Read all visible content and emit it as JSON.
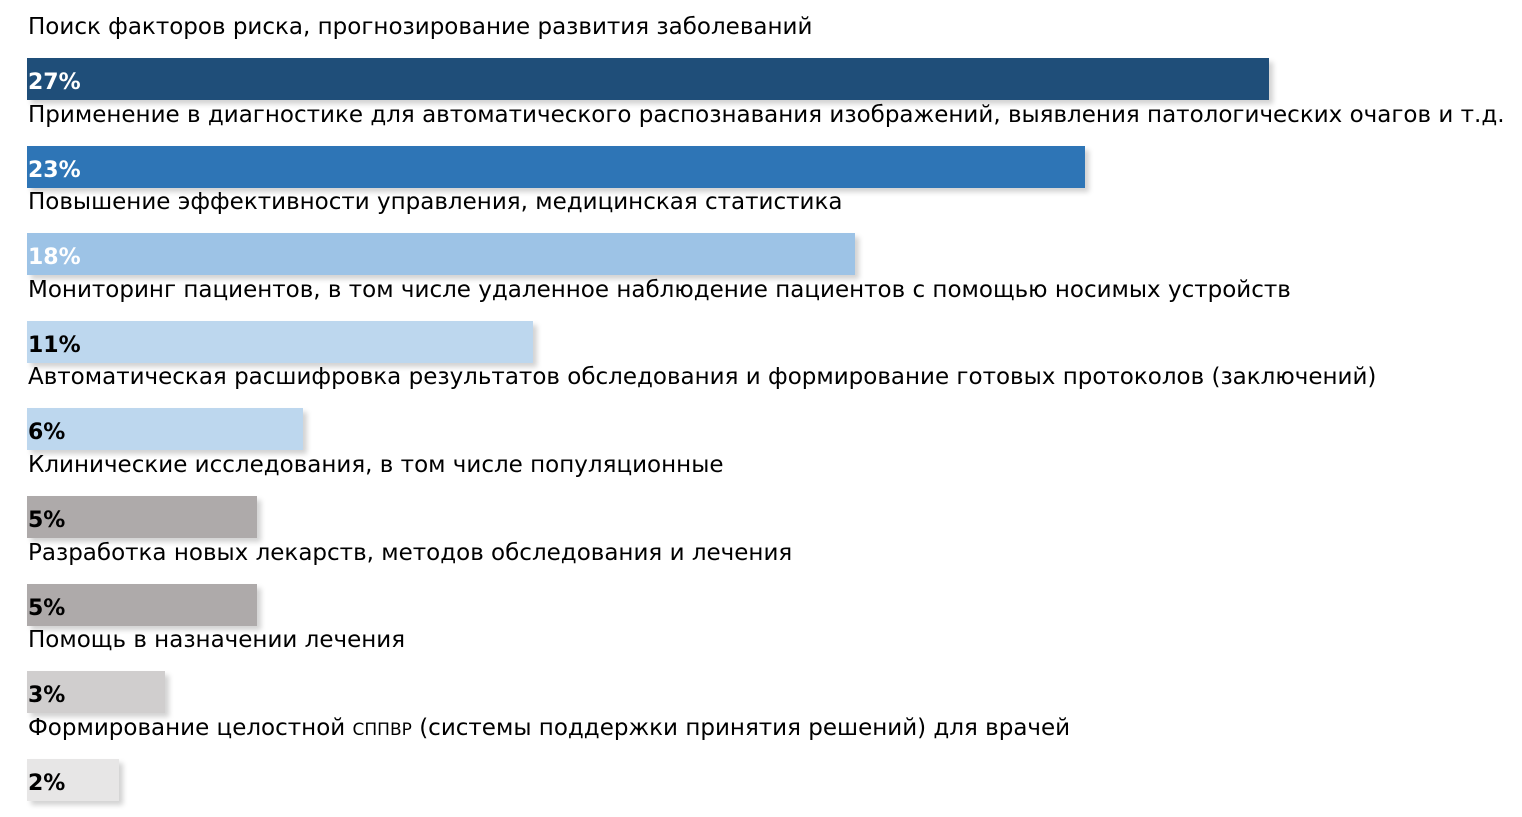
{
  "chart_data": {
    "type": "bar",
    "orientation": "horizontal",
    "title": "",
    "xlabel": "",
    "ylabel": "",
    "categories": [
      "Поиск факторов риска, прогнозирование развития заболеваний",
      "Применение в диагностике для автоматического распознавания изображений, выявления патологических очагов и т.д.",
      "Повышение эффективности управления, медицинская статистика",
      "Мониторинг пациентов, в том числе удаленное наблюдение пациентов с помощью носимых устройств",
      "Автоматическая расшифровка результатов обследования и формирование готовых протоколов (заключений)",
      "Клинические исследования, в том числе популяционные",
      "Разработка новых лекарств, методов обследования и лечения",
      "Помощь в назначении лечения",
      "Формирование целостной СППВР (системы поддержки принятия решений) для врачей"
    ],
    "values": [
      27,
      23,
      18,
      11,
      6,
      5,
      5,
      3,
      2
    ],
    "value_labels": [
      "27%",
      "23%",
      "18%",
      "11%",
      "6%",
      "5%",
      "5%",
      "3%",
      "2%"
    ],
    "unit": "%",
    "bar_colors": [
      "#1f4e79",
      "#2e75b6",
      "#9dc3e6",
      "#bdd7ee",
      "#bdd7ee",
      "#aeaaaa",
      "#aeaaaa",
      "#d0cece",
      "#e7e6e6"
    ],
    "label_colors": [
      "#ffffff",
      "#ffffff",
      "#ffffff",
      "#000000",
      "#000000",
      "#000000",
      "#000000",
      "#000000",
      "#000000"
    ],
    "grid": false,
    "legend": "none"
  }
}
